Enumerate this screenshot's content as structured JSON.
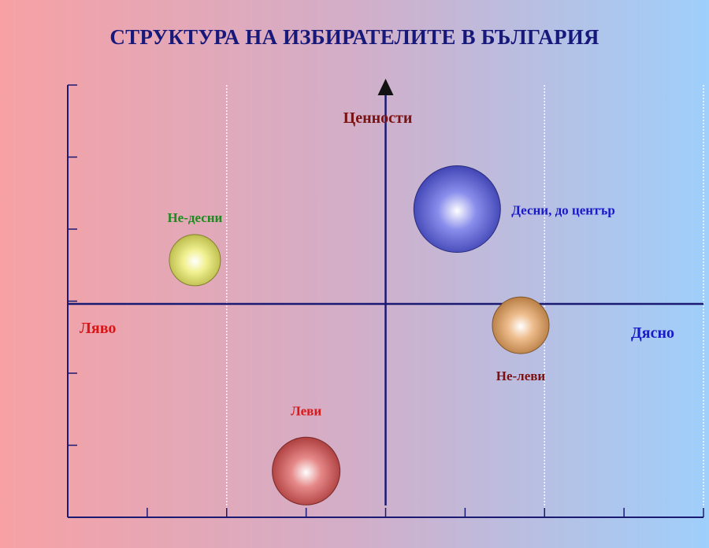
{
  "title": "СТРУКТУРА НА ИЗБИРАТЕЛИТЕ В БЪЛГАРИЯ",
  "chart_data": {
    "type": "scatter",
    "title": "СТРУКТУРА НА ИЗБИРАТЕЛИТЕ В БЪЛГАРИЯ",
    "xlabel_left": "Ляво",
    "xlabel_right": "Дясно",
    "ylabel": "Ценности",
    "xlim": [
      -4,
      4
    ],
    "ylim": [
      -3,
      3
    ],
    "grid_x": [
      -2,
      2,
      4
    ],
    "series": [
      {
        "name": "Не-десни",
        "x": -2.4,
        "y": 0.6,
        "size": 0.65,
        "color": "#eaea58",
        "label_color": "#1f8a1f"
      },
      {
        "name": "Десни, до център",
        "x": 0.9,
        "y": 1.3,
        "size": 1.1,
        "color": "#4a50e0",
        "label_color": "#1a1ac8"
      },
      {
        "name": "Не-леви",
        "x": 1.7,
        "y": -0.3,
        "size": 0.72,
        "color": "#e59a4f",
        "label_color": "#7a1212"
      },
      {
        "name": "Леви",
        "x": -1.0,
        "y": -2.35,
        "size": 0.86,
        "color": "#d84848",
        "label_color": "#d81818"
      }
    ],
    "colors": {
      "axis": "#1a1a72",
      "ylabel": "#7a1212",
      "xlabel_left": "#d81818",
      "xlabel_right": "#1a1ac8"
    }
  }
}
